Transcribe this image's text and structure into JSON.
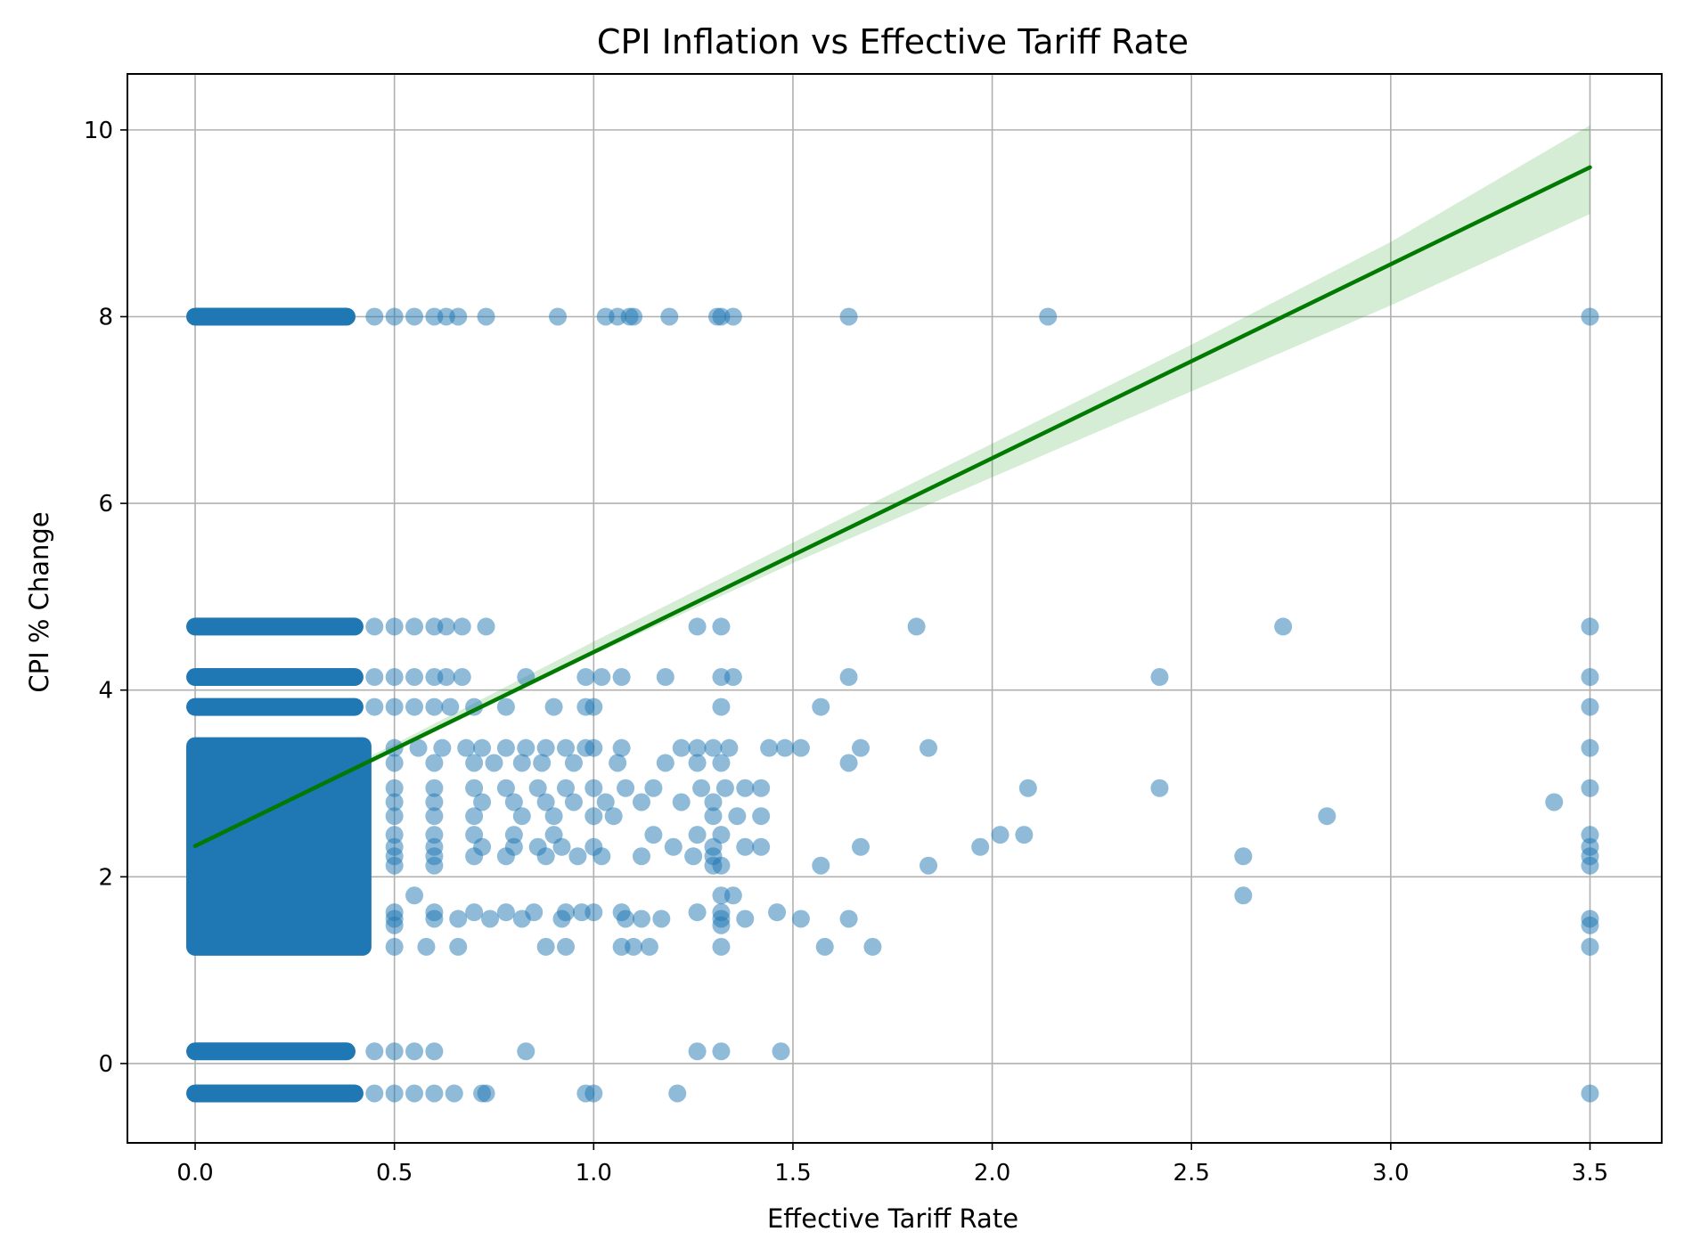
{
  "chart_data": {
    "type": "scatter",
    "title": "CPI Inflation vs Effective Tariff Rate",
    "xlabel": "Effective Tariff Rate",
    "ylabel": "CPI % Change",
    "xlim": [
      -0.17,
      3.68
    ],
    "ylim": [
      -0.85,
      10.6
    ],
    "xticks": [
      0.0,
      0.5,
      1.0,
      1.5,
      2.0,
      2.5,
      3.0,
      3.5
    ],
    "xtick_labels": [
      "0.0",
      "0.5",
      "1.0",
      "1.5",
      "2.0",
      "2.5",
      "3.0",
      "3.5"
    ],
    "yticks": [
      0,
      2,
      4,
      6,
      8,
      10
    ],
    "ytick_labels": [
      "0",
      "2",
      "4",
      "6",
      "8",
      "10"
    ],
    "grid": true,
    "colors": {
      "points": "#1f77b4",
      "fit_line": "#007a00",
      "band": "#2ca02c"
    },
    "dense_bands": [
      {
        "y": 8.0,
        "x_from": 0.0,
        "x_to": 0.38
      },
      {
        "y": 4.68,
        "x_from": 0.0,
        "x_to": 0.4
      },
      {
        "y": 4.14,
        "x_from": 0.0,
        "x_to": 0.4
      },
      {
        "y": 3.82,
        "x_from": 0.0,
        "x_to": 0.4
      },
      {
        "y_from": 1.25,
        "y_to": 3.4,
        "x_from": 0.0,
        "x_to": 0.42
      },
      {
        "y": 0.13,
        "x_from": 0.0,
        "x_to": 0.38
      },
      {
        "y": -0.32,
        "x_from": 0.0,
        "x_to": 0.4
      }
    ],
    "series": [
      {
        "name": "observations",
        "points": [
          [
            0.45,
            8
          ],
          [
            0.5,
            8
          ],
          [
            0.55,
            8
          ],
          [
            0.6,
            8
          ],
          [
            0.63,
            8
          ],
          [
            0.66,
            8
          ],
          [
            0.73,
            8
          ],
          [
            0.91,
            8
          ],
          [
            1.03,
            8
          ],
          [
            1.06,
            8
          ],
          [
            1.09,
            8
          ],
          [
            1.1,
            8
          ],
          [
            1.19,
            8
          ],
          [
            1.31,
            8
          ],
          [
            1.32,
            8
          ],
          [
            1.35,
            8
          ],
          [
            1.64,
            8
          ],
          [
            2.14,
            8
          ],
          [
            3.5,
            8
          ],
          [
            0.45,
            4.68
          ],
          [
            0.5,
            4.68
          ],
          [
            0.55,
            4.68
          ],
          [
            0.6,
            4.68
          ],
          [
            0.63,
            4.68
          ],
          [
            0.67,
            4.68
          ],
          [
            0.73,
            4.68
          ],
          [
            1.26,
            4.68
          ],
          [
            1.32,
            4.68
          ],
          [
            1.81,
            4.68
          ],
          [
            2.73,
            4.68
          ],
          [
            3.5,
            4.68
          ],
          [
            0.45,
            4.14
          ],
          [
            0.5,
            4.14
          ],
          [
            0.55,
            4.14
          ],
          [
            0.6,
            4.14
          ],
          [
            0.63,
            4.14
          ],
          [
            0.67,
            4.14
          ],
          [
            0.83,
            4.14
          ],
          [
            0.98,
            4.14
          ],
          [
            1.02,
            4.14
          ],
          [
            1.07,
            4.14
          ],
          [
            1.18,
            4.14
          ],
          [
            1.32,
            4.14
          ],
          [
            1.35,
            4.14
          ],
          [
            1.64,
            4.14
          ],
          [
            2.42,
            4.14
          ],
          [
            3.5,
            4.14
          ],
          [
            0.45,
            3.82
          ],
          [
            0.5,
            3.82
          ],
          [
            0.55,
            3.82
          ],
          [
            0.6,
            3.82
          ],
          [
            0.64,
            3.82
          ],
          [
            0.7,
            3.82
          ],
          [
            0.78,
            3.82
          ],
          [
            0.9,
            3.82
          ],
          [
            0.98,
            3.82
          ],
          [
            1.0,
            3.82
          ],
          [
            1.32,
            3.82
          ],
          [
            1.57,
            3.82
          ],
          [
            3.5,
            3.82
          ],
          [
            0.5,
            3.38
          ],
          [
            0.56,
            3.38
          ],
          [
            0.62,
            3.38
          ],
          [
            0.68,
            3.38
          ],
          [
            0.72,
            3.38
          ],
          [
            0.78,
            3.38
          ],
          [
            0.83,
            3.38
          ],
          [
            0.88,
            3.38
          ],
          [
            0.93,
            3.38
          ],
          [
            0.98,
            3.38
          ],
          [
            1.0,
            3.38
          ],
          [
            1.07,
            3.38
          ],
          [
            1.22,
            3.38
          ],
          [
            1.26,
            3.38
          ],
          [
            1.3,
            3.38
          ],
          [
            1.34,
            3.38
          ],
          [
            1.44,
            3.38
          ],
          [
            1.48,
            3.38
          ],
          [
            1.52,
            3.38
          ],
          [
            1.67,
            3.38
          ],
          [
            1.84,
            3.38
          ],
          [
            3.5,
            3.38
          ],
          [
            0.5,
            3.22
          ],
          [
            0.6,
            3.22
          ],
          [
            0.7,
            3.22
          ],
          [
            0.75,
            3.22
          ],
          [
            0.82,
            3.22
          ],
          [
            0.87,
            3.22
          ],
          [
            0.95,
            3.22
          ],
          [
            1.06,
            3.22
          ],
          [
            1.18,
            3.22
          ],
          [
            1.26,
            3.22
          ],
          [
            1.32,
            3.22
          ],
          [
            1.64,
            3.22
          ],
          [
            0.5,
            2.95
          ],
          [
            0.6,
            2.95
          ],
          [
            0.7,
            2.95
          ],
          [
            0.78,
            2.95
          ],
          [
            0.86,
            2.95
          ],
          [
            0.93,
            2.95
          ],
          [
            1.0,
            2.95
          ],
          [
            1.08,
            2.95
          ],
          [
            1.15,
            2.95
          ],
          [
            1.27,
            2.95
          ],
          [
            1.33,
            2.95
          ],
          [
            1.38,
            2.95
          ],
          [
            1.42,
            2.95
          ],
          [
            2.09,
            2.95
          ],
          [
            2.42,
            2.95
          ],
          [
            3.5,
            2.95
          ],
          [
            0.5,
            2.8
          ],
          [
            0.6,
            2.8
          ],
          [
            0.72,
            2.8
          ],
          [
            0.8,
            2.8
          ],
          [
            0.88,
            2.8
          ],
          [
            0.95,
            2.8
          ],
          [
            1.03,
            2.8
          ],
          [
            1.12,
            2.8
          ],
          [
            1.22,
            2.8
          ],
          [
            1.3,
            2.8
          ],
          [
            3.41,
            2.8
          ],
          [
            0.5,
            2.65
          ],
          [
            0.6,
            2.65
          ],
          [
            0.7,
            2.65
          ],
          [
            0.82,
            2.65
          ],
          [
            0.9,
            2.65
          ],
          [
            1.0,
            2.65
          ],
          [
            1.05,
            2.65
          ],
          [
            1.3,
            2.65
          ],
          [
            1.36,
            2.65
          ],
          [
            1.42,
            2.65
          ],
          [
            2.84,
            2.65
          ],
          [
            0.5,
            2.45
          ],
          [
            0.6,
            2.45
          ],
          [
            0.7,
            2.45
          ],
          [
            0.8,
            2.45
          ],
          [
            0.9,
            2.45
          ],
          [
            1.15,
            2.45
          ],
          [
            1.26,
            2.45
          ],
          [
            1.32,
            2.45
          ],
          [
            2.02,
            2.45
          ],
          [
            2.08,
            2.45
          ],
          [
            3.5,
            2.45
          ],
          [
            0.5,
            2.32
          ],
          [
            0.6,
            2.32
          ],
          [
            0.72,
            2.32
          ],
          [
            0.8,
            2.32
          ],
          [
            0.86,
            2.32
          ],
          [
            0.92,
            2.32
          ],
          [
            1.0,
            2.32
          ],
          [
            1.2,
            2.32
          ],
          [
            1.3,
            2.32
          ],
          [
            1.38,
            2.32
          ],
          [
            1.42,
            2.32
          ],
          [
            1.67,
            2.32
          ],
          [
            1.97,
            2.32
          ],
          [
            3.5,
            2.32
          ],
          [
            0.5,
            2.22
          ],
          [
            0.6,
            2.22
          ],
          [
            0.7,
            2.22
          ],
          [
            0.78,
            2.22
          ],
          [
            0.88,
            2.22
          ],
          [
            0.96,
            2.22
          ],
          [
            1.02,
            2.22
          ],
          [
            1.12,
            2.22
          ],
          [
            1.25,
            2.22
          ],
          [
            1.3,
            2.22
          ],
          [
            2.63,
            2.22
          ],
          [
            3.5,
            2.22
          ],
          [
            0.5,
            2.12
          ],
          [
            0.6,
            2.12
          ],
          [
            1.3,
            2.12
          ],
          [
            1.32,
            2.12
          ],
          [
            1.57,
            2.12
          ],
          [
            1.84,
            2.12
          ],
          [
            3.5,
            2.12
          ],
          [
            0.55,
            1.8
          ],
          [
            1.32,
            1.8
          ],
          [
            1.35,
            1.8
          ],
          [
            2.63,
            1.8
          ],
          [
            0.5,
            1.62
          ],
          [
            0.6,
            1.62
          ],
          [
            0.7,
            1.62
          ],
          [
            0.78,
            1.62
          ],
          [
            0.85,
            1.62
          ],
          [
            0.93,
            1.62
          ],
          [
            0.97,
            1.62
          ],
          [
            1.0,
            1.62
          ],
          [
            1.07,
            1.62
          ],
          [
            1.26,
            1.62
          ],
          [
            1.32,
            1.62
          ],
          [
            1.46,
            1.62
          ],
          [
            0.5,
            1.55
          ],
          [
            0.6,
            1.55
          ],
          [
            0.66,
            1.55
          ],
          [
            0.74,
            1.55
          ],
          [
            0.82,
            1.55
          ],
          [
            0.92,
            1.55
          ],
          [
            1.08,
            1.55
          ],
          [
            1.12,
            1.55
          ],
          [
            1.17,
            1.55
          ],
          [
            1.32,
            1.55
          ],
          [
            1.38,
            1.55
          ],
          [
            1.52,
            1.55
          ],
          [
            1.64,
            1.55
          ],
          [
            3.5,
            1.55
          ],
          [
            0.5,
            1.48
          ],
          [
            1.32,
            1.48
          ],
          [
            3.5,
            1.48
          ],
          [
            0.5,
            1.25
          ],
          [
            0.58,
            1.25
          ],
          [
            0.66,
            1.25
          ],
          [
            0.88,
            1.25
          ],
          [
            0.93,
            1.25
          ],
          [
            1.07,
            1.25
          ],
          [
            1.1,
            1.25
          ],
          [
            1.14,
            1.25
          ],
          [
            1.32,
            1.25
          ],
          [
            1.58,
            1.25
          ],
          [
            1.7,
            1.25
          ],
          [
            3.5,
            1.25
          ],
          [
            0.45,
            0.13
          ],
          [
            0.5,
            0.13
          ],
          [
            0.55,
            0.13
          ],
          [
            0.6,
            0.13
          ],
          [
            0.83,
            0.13
          ],
          [
            1.26,
            0.13
          ],
          [
            1.32,
            0.13
          ],
          [
            1.47,
            0.13
          ],
          [
            0.45,
            -0.32
          ],
          [
            0.5,
            -0.32
          ],
          [
            0.55,
            -0.32
          ],
          [
            0.6,
            -0.32
          ],
          [
            0.65,
            -0.32
          ],
          [
            0.72,
            -0.32
          ],
          [
            0.73,
            -0.32
          ],
          [
            0.98,
            -0.32
          ],
          [
            1.0,
            -0.32
          ],
          [
            1.21,
            -0.32
          ],
          [
            3.5,
            -0.32
          ]
        ]
      }
    ],
    "fit_line": {
      "x": [
        0.0,
        3.5
      ],
      "y": [
        2.33,
        9.6
      ]
    },
    "confidence_band": {
      "x": [
        0.0,
        0.5,
        1.0,
        1.5,
        2.0,
        2.5,
        3.0,
        3.5
      ],
      "lower": [
        2.28,
        3.34,
        4.38,
        5.36,
        6.28,
        7.2,
        8.12,
        9.1
      ],
      "upper": [
        2.38,
        3.42,
        4.52,
        5.58,
        6.64,
        7.7,
        8.8,
        10.05
      ]
    }
  }
}
